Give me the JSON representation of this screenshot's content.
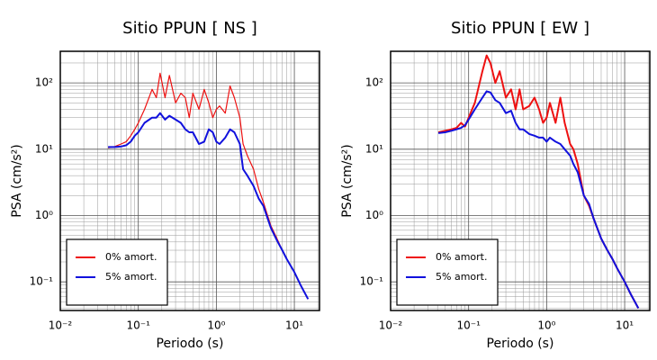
{
  "chart_data": [
    {
      "type": "line",
      "title": "Sitio PPUN [ NS ]",
      "x_label": "Periodo (s)",
      "y_label": "PSA (cm/s²)",
      "log_x": true,
      "log_y": true,
      "grid": true,
      "legend": "lower left",
      "xlim": [
        0.01,
        21
      ],
      "ylim": [
        0.037,
        300
      ],
      "xticks": [
        {
          "value": 0.01,
          "label": "10⁻²"
        },
        {
          "value": 0.1,
          "label": "10⁻¹"
        },
        {
          "value": 1,
          "label": "10⁰"
        },
        {
          "value": 10,
          "label": "10¹"
        }
      ],
      "yticks": [
        {
          "value": 0.1,
          "label": "10⁻¹"
        },
        {
          "value": 1,
          "label": "10⁰"
        },
        {
          "value": 10,
          "label": "10¹"
        },
        {
          "value": 100,
          "label": "10²"
        }
      ],
      "minor_xticks": [
        0.02,
        0.03,
        0.04,
        0.05,
        0.06,
        0.07,
        0.08,
        0.09,
        0.2,
        0.3,
        0.4,
        0.5,
        0.6,
        0.7,
        0.8,
        0.9,
        2,
        3,
        4,
        5,
        6,
        7,
        8,
        9,
        20
      ],
      "minor_yticks": [
        0.04,
        0.05,
        0.06,
        0.07,
        0.08,
        0.09,
        0.2,
        0.3,
        0.4,
        0.5,
        0.6,
        0.7,
        0.8,
        0.9,
        2,
        3,
        4,
        5,
        6,
        7,
        8,
        9,
        20,
        30,
        40,
        50,
        60,
        70,
        80,
        90,
        200,
        300
      ],
      "x": [
        0.041,
        0.05,
        0.06,
        0.07,
        0.08,
        0.09,
        0.1,
        0.12,
        0.15,
        0.17,
        0.19,
        0.22,
        0.25,
        0.3,
        0.35,
        0.4,
        0.45,
        0.5,
        0.6,
        0.7,
        0.8,
        0.9,
        1.0,
        1.1,
        1.3,
        1.5,
        1.7,
        2.0,
        2.2,
        2.5,
        3.0,
        3.5,
        4.0,
        5.0,
        6.0,
        7.0,
        8.0,
        10,
        12,
        15
      ],
      "series": [
        {
          "name": "0% amort.",
          "color": "#ee1111",
          "linewidth": 1.2,
          "values": [
            10.5,
            11,
            12,
            13,
            16,
            20,
            25,
            40,
            80,
            60,
            140,
            60,
            130,
            50,
            70,
            60,
            30,
            70,
            40,
            80,
            50,
            30,
            40,
            45,
            35,
            90,
            60,
            30,
            12,
            8,
            5,
            2.5,
            1.6,
            0.7,
            0.45,
            0.3,
            0.22,
            0.14,
            0.09,
            0.055
          ]
        },
        {
          "name": "5% amort.",
          "color": "#1111dd",
          "linewidth": 2,
          "values": [
            10.8,
            10.8,
            11,
            11.5,
            13,
            16,
            18,
            25,
            30,
            30,
            35,
            28,
            32,
            28,
            25,
            20,
            18,
            18,
            12,
            13,
            20,
            18,
            13,
            12,
            15,
            20,
            18,
            12,
            5,
            4,
            2.8,
            1.8,
            1.4,
            0.65,
            0.42,
            0.3,
            0.22,
            0.14,
            0.09,
            0.055
          ]
        }
      ]
    },
    {
      "type": "line",
      "title": "Sitio PPUN [ EW ]",
      "x_label": "Periodo (s)",
      "y_label": "PSA (cm/s²)",
      "log_x": true,
      "log_y": true,
      "grid": true,
      "legend": "lower left",
      "xlim": [
        0.01,
        21
      ],
      "ylim": [
        0.037,
        300
      ],
      "xticks": [
        {
          "value": 0.01,
          "label": "10⁻²"
        },
        {
          "value": 0.1,
          "label": "10⁻¹"
        },
        {
          "value": 1,
          "label": "10⁰"
        },
        {
          "value": 10,
          "label": "10¹"
        }
      ],
      "yticks": [
        {
          "value": 0.1,
          "label": "10⁻¹"
        },
        {
          "value": 1,
          "label": "10⁰"
        },
        {
          "value": 10,
          "label": "10¹"
        },
        {
          "value": 100,
          "label": "10²"
        }
      ],
      "minor_xticks": [
        0.02,
        0.03,
        0.04,
        0.05,
        0.06,
        0.07,
        0.08,
        0.09,
        0.2,
        0.3,
        0.4,
        0.5,
        0.6,
        0.7,
        0.8,
        0.9,
        2,
        3,
        4,
        5,
        6,
        7,
        8,
        9,
        20
      ],
      "minor_yticks": [
        0.04,
        0.05,
        0.06,
        0.07,
        0.08,
        0.09,
        0.2,
        0.3,
        0.4,
        0.5,
        0.6,
        0.7,
        0.8,
        0.9,
        2,
        3,
        4,
        5,
        6,
        7,
        8,
        9,
        20,
        30,
        40,
        50,
        60,
        70,
        80,
        90,
        200,
        300
      ],
      "x": [
        0.041,
        0.05,
        0.06,
        0.07,
        0.08,
        0.09,
        0.1,
        0.12,
        0.15,
        0.17,
        0.19,
        0.22,
        0.25,
        0.3,
        0.35,
        0.4,
        0.45,
        0.5,
        0.6,
        0.7,
        0.8,
        0.9,
        1.0,
        1.1,
        1.3,
        1.5,
        1.7,
        2.0,
        2.2,
        2.5,
        3.0,
        3.5,
        4.0,
        5.0,
        6.0,
        7.0,
        8.0,
        10,
        12,
        15
      ],
      "series": [
        {
          "name": "0% amort.",
          "color": "#ee1111",
          "linewidth": 2,
          "values": [
            18,
            19,
            20,
            21,
            25,
            22,
            30,
            50,
            150,
            260,
            200,
            100,
            150,
            60,
            80,
            40,
            80,
            40,
            45,
            60,
            40,
            25,
            30,
            50,
            25,
            60,
            25,
            12,
            10,
            6,
            2,
            1.4,
            0.9,
            0.45,
            0.3,
            0.22,
            0.16,
            0.1,
            0.065,
            0.04
          ]
        },
        {
          "name": "5% amort.",
          "color": "#1111dd",
          "linewidth": 2,
          "values": [
            17.5,
            18,
            19,
            20,
            21,
            23,
            28,
            40,
            60,
            75,
            72,
            55,
            50,
            35,
            38,
            25,
            20,
            20,
            17,
            16,
            15,
            15,
            13,
            15,
            13,
            12,
            10,
            8,
            6,
            4.5,
            2,
            1.5,
            0.9,
            0.45,
            0.3,
            0.22,
            0.16,
            0.1,
            0.065,
            0.04
          ]
        }
      ]
    }
  ]
}
